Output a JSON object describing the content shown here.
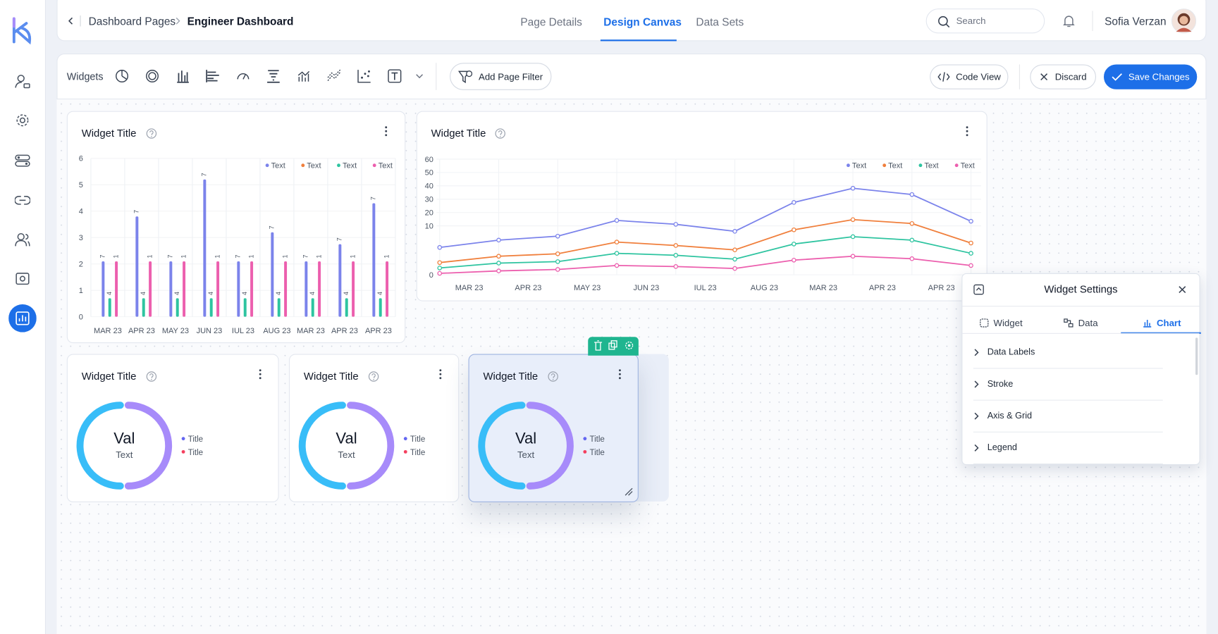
{
  "breadcrumb": [
    "Dashboard Pages",
    "Engineer Dashboard"
  ],
  "tabs": [
    "Page Details",
    "Design Canvas",
    "Data Sets"
  ],
  "search_placeholder": "Search",
  "user_name": "Sofia Verzan",
  "toolbar": {
    "label": "Widgets",
    "add_filter": "Add Page Filter",
    "code_view": "Code View",
    "discard": "Discard",
    "save": "Save Changes"
  },
  "bar_widget": {
    "title": "Widget Title",
    "chart": {
      "type": "bar",
      "categories": [
        "MAR 23",
        "APR 23",
        "MAY 23",
        "JUN 23",
        "IUL 23",
        "AUG 23",
        "MAR 23",
        "APR 23",
        "APR 23"
      ],
      "series": [
        {
          "name": "Text",
          "color": "#7b83eb",
          "values": [
            2.1,
            3.8,
            2.1,
            5.2,
            2.1,
            3.2,
            2.1,
            2.75,
            4.3
          ],
          "annotations": [
            "7",
            "7",
            "7",
            "7",
            "7",
            "7",
            "7",
            "7",
            "7"
          ]
        },
        {
          "name": "Text",
          "color": "#f07f3c",
          "values": [
            null,
            null,
            null,
            null,
            null,
            null,
            null,
            null,
            null
          ]
        },
        {
          "name": "Text",
          "color": "#2ec4a0",
          "values": [
            0.7,
            0.7,
            0.7,
            0.7,
            0.7,
            0.7,
            0.7,
            0.7,
            0.7
          ],
          "annotations": [
            "4",
            "4",
            "4",
            "4",
            "4",
            "4",
            "4",
            "4",
            "4"
          ]
        },
        {
          "name": "Text",
          "color": "#ec5fae",
          "values": [
            2.1,
            2.1,
            2.1,
            2.1,
            2.1,
            2.1,
            2.1,
            2.1,
            2.1
          ],
          "annotations": [
            "1",
            "1",
            "1",
            "1",
            "1",
            "1",
            "1",
            "1",
            "1"
          ]
        }
      ],
      "ylim": [
        0,
        6
      ],
      "yticks": [
        0,
        1,
        2,
        3,
        4,
        5,
        6
      ],
      "grid": true
    }
  },
  "line_widget": {
    "title": "Widget Title",
    "chart": {
      "type": "line",
      "categories": [
        "MAR 23",
        "APR 23",
        "MAY 23",
        "JUN 23",
        "IUL 23",
        "AUG 23",
        "MAR 23",
        "APR 23",
        "APR 23",
        null
      ],
      "series": [
        {
          "name": "Text",
          "color": "#7b83eb",
          "values": [
            5.6,
            7.1,
            7.9,
            14.1,
            11.2,
            8.9,
            27.6,
            38.2,
            33.5,
            13.5
          ]
        },
        {
          "name": "Text",
          "color": "#f07f3c",
          "values": [
            2.5,
            3.8,
            4.3,
            6.7,
            6.0,
            5.1,
            9.2,
            14.7,
            11.8,
            6.5
          ]
        },
        {
          "name": "Text",
          "color": "#2ec4a0",
          "values": [
            1.4,
            2.4,
            2.7,
            4.4,
            4.0,
            3.2,
            6.3,
            7.8,
            7.1,
            4.4
          ]
        },
        {
          "name": "Text",
          "color": "#ec5fae",
          "values": [
            0.3,
            0.8,
            1.1,
            1.9,
            1.7,
            1.3,
            3.0,
            3.8,
            3.3,
            1.9
          ]
        }
      ],
      "ylim": [
        0,
        60
      ],
      "yticks": [
        0,
        10,
        20,
        30,
        40,
        50,
        60
      ],
      "grid": true
    }
  },
  "donut_widgets": [
    {
      "title": "Widget Title",
      "value": "Val",
      "caption": "Text",
      "legend": [
        "Title",
        "Title"
      ]
    },
    {
      "title": "Widget Title",
      "value": "Val",
      "caption": "Text",
      "legend": [
        "Title",
        "Title"
      ]
    },
    {
      "title": "Widget Title",
      "value": "Val",
      "caption": "Text",
      "legend": [
        "Title",
        "Title"
      ]
    }
  ],
  "settings": {
    "title": "Widget Settings",
    "tabs": [
      "Widget",
      "Data",
      "Chart"
    ],
    "sections": [
      "Data Labels",
      "Stroke",
      "Axis & Grid",
      "Legend"
    ]
  }
}
